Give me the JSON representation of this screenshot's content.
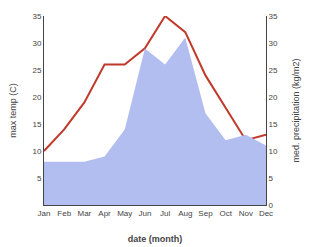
{
  "chart_data": {
    "type": "line",
    "xlabel": "date (month)",
    "ylabel": "max temp (C)",
    "y2label": "med. precipitation (kg/m2)",
    "categories": [
      "Jan",
      "Feb",
      "Mar",
      "Apr",
      "May",
      "Jun",
      "Jul",
      "Aug",
      "Sep",
      "Oct",
      "Nov",
      "Dec"
    ],
    "series": [
      {
        "type": "area",
        "axis": "y2",
        "color": "#b3bef0",
        "values": [
          8,
          8,
          8,
          9,
          14,
          29,
          26,
          31,
          17,
          12,
          13,
          11
        ]
      },
      {
        "type": "line",
        "color": "#c0392b",
        "values": [
          10,
          14,
          19,
          26,
          26,
          29,
          35,
          32,
          24,
          18,
          12,
          13
        ]
      }
    ],
    "ylim": [
      0,
      35
    ],
    "yticks": [
      5,
      10,
      15,
      20,
      25,
      30,
      35
    ],
    "y2lim": [
      0,
      35
    ],
    "y2ticks": [
      0,
      5,
      10,
      15,
      20,
      25,
      30,
      35
    ],
    "grid": false
  }
}
